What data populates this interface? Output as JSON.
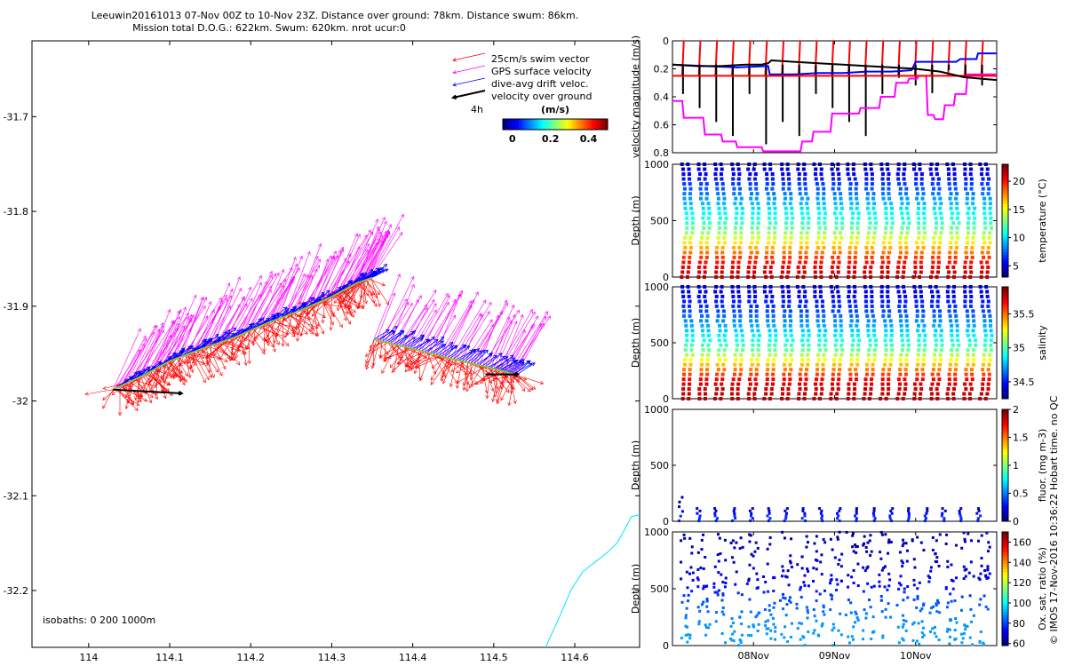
{
  "figure": {
    "title_line1": "Leeuwin20161013 07-Nov 00Z to 10-Nov 23Z. Distance over ground: 78km. Distance swum: 86km.",
    "title_line2": "Mission total D.O.G.: 622km. Swum: 620km. nrot ucur:0",
    "credit": "© IMOS 17-Nov-2016 10:36:22 Hobart time. no QC"
  },
  "chart_data": [
    {
      "id": "map",
      "type": "scatter",
      "title": "",
      "xlabel": "",
      "ylabel": "",
      "xlim": [
        113.93,
        114.68
      ],
      "ylim": [
        -32.26,
        -31.62
      ],
      "xticks": [
        "114",
        "114.1",
        "114.2",
        "114.3",
        "114.4",
        "114.5",
        "114.6"
      ],
      "xtick_values": [
        114.0,
        114.1,
        114.2,
        114.3,
        114.4,
        114.5,
        114.6
      ],
      "yticks": [
        "-31.7",
        "-31.8",
        "-31.9",
        "-32",
        "-32.1",
        "-32.2"
      ],
      "ytick_values": [
        -31.7,
        -31.8,
        -31.9,
        -32.0,
        -32.1,
        -32.2
      ],
      "legend": {
        "position": "top-right",
        "entries": [
          {
            "label": "25cm/s swim vector",
            "color": "#ff0000"
          },
          {
            "label": "GPS surface velocity",
            "color": "#ff00ff"
          },
          {
            "label": "dive-avg drift veloc.",
            "color": "#0000ff"
          },
          {
            "label": "velocity over ground",
            "color": "#000000"
          }
        ],
        "scale_label": "4h",
        "colorbar_title": "(m/s)",
        "colorbar_ticks": [
          "0",
          "0.2",
          "0.4"
        ],
        "colorbar_values": [
          0,
          0.2,
          0.4
        ],
        "colorbar_range": [
          -0.05,
          0.5
        ]
      },
      "isobaths_label": "isobaths: 0   200  1000m",
      "track": [
        {
          "x": 114.03,
          "y": -31.988
        },
        {
          "x": 114.07,
          "y": -31.972
        },
        {
          "x": 114.1,
          "y": -31.958
        },
        {
          "x": 114.14,
          "y": -31.945
        },
        {
          "x": 114.18,
          "y": -31.933
        },
        {
          "x": 114.22,
          "y": -31.918
        },
        {
          "x": 114.26,
          "y": -31.905
        },
        {
          "x": 114.3,
          "y": -31.89
        },
        {
          "x": 114.33,
          "y": -31.876
        },
        {
          "x": 114.35,
          "y": -31.87
        },
        {
          "x": 114.352,
          "y": -31.935
        },
        {
          "x": 114.4,
          "y": -31.945
        },
        {
          "x": 114.45,
          "y": -31.956
        },
        {
          "x": 114.5,
          "y": -31.966
        },
        {
          "x": 114.53,
          "y": -31.973
        }
      ],
      "ground_velocity_arrows": [
        {
          "x": 114.03,
          "y": -31.988,
          "dx": 0.085,
          "dy": -0.004
        },
        {
          "x": 114.49,
          "y": -31.972,
          "dx": 0.04,
          "dy": 0.0
        }
      ],
      "isobath_1000m": [
        {
          "x": 114.564,
          "y": -32.26
        },
        {
          "x": 114.58,
          "y": -32.23
        },
        {
          "x": 114.595,
          "y": -32.2
        },
        {
          "x": 114.61,
          "y": -32.18
        },
        {
          "x": 114.625,
          "y": -32.17
        },
        {
          "x": 114.64,
          "y": -32.16
        },
        {
          "x": 114.652,
          "y": -32.15
        },
        {
          "x": 114.662,
          "y": -32.135
        },
        {
          "x": 114.67,
          "y": -32.122
        },
        {
          "x": 114.68,
          "y": -32.12
        }
      ]
    },
    {
      "id": "velocity",
      "type": "line",
      "ylabel": "velocity magnitude (m/s)",
      "xlim": [
        0,
        4
      ],
      "ylim": [
        0,
        0.8
      ],
      "yticks": [
        "0",
        "0.2",
        "0.4",
        "0.6",
        "0.8"
      ],
      "ytick_values": [
        0,
        0.2,
        0.4,
        0.6,
        0.8
      ],
      "series": [
        {
          "color": "#ff00ff",
          "x": [
            0,
            0.12,
            0.14,
            0.38,
            0.4,
            0.6,
            0.62,
            0.78,
            0.8,
            1.1,
            1.12,
            1.58,
            1.6,
            1.72,
            1.74,
            1.95,
            1.97,
            2.3,
            2.32,
            2.55,
            2.57,
            2.74,
            2.76,
            2.9,
            2.92,
            3.02,
            3.04,
            3.13,
            3.15,
            3.22,
            3.24,
            3.34,
            3.36,
            3.47,
            3.49,
            3.62,
            3.64,
            4.0
          ],
          "values": [
            0.43,
            0.43,
            0.55,
            0.55,
            0.67,
            0.67,
            0.72,
            0.72,
            0.76,
            0.76,
            0.79,
            0.79,
            0.72,
            0.72,
            0.65,
            0.65,
            0.52,
            0.52,
            0.48,
            0.48,
            0.4,
            0.4,
            0.3,
            0.3,
            0.27,
            0.27,
            0.25,
            0.25,
            0.53,
            0.53,
            0.56,
            0.56,
            0.46,
            0.46,
            0.38,
            0.38,
            0.24,
            0.24
          ]
        },
        {
          "color": "#0000ff",
          "x": [
            0,
            0.4,
            0.8,
            1.18,
            1.2,
            1.5,
            1.8,
            2.1,
            2.4,
            2.7,
            2.95,
            3.0,
            3.2,
            3.5,
            3.55,
            3.75,
            3.77,
            4.0
          ],
          "values": [
            0.17,
            0.18,
            0.19,
            0.18,
            0.24,
            0.24,
            0.23,
            0.23,
            0.22,
            0.22,
            0.21,
            0.15,
            0.15,
            0.15,
            0.13,
            0.13,
            0.09,
            0.09
          ]
        },
        {
          "color": "#ff0000",
          "x": [
            0,
            4.0
          ],
          "values": [
            0.25,
            0.25
          ]
        },
        {
          "color": "#000000",
          "x": [
            0,
            0.3,
            0.6,
            0.9,
            1.1,
            1.18,
            1.22,
            1.5,
            1.8,
            2.1,
            2.4,
            2.7,
            3.0,
            3.3,
            3.6,
            4.0
          ],
          "values": [
            0.17,
            0.18,
            0.18,
            0.17,
            0.17,
            0.16,
            0.14,
            0.15,
            0.16,
            0.17,
            0.18,
            0.19,
            0.2,
            0.22,
            0.26,
            0.28
          ]
        }
      ]
    },
    {
      "id": "temperature",
      "type": "scatter",
      "ylabel": "Depth (m)",
      "colorbar_label": "temperature (°C)",
      "xlim": [
        0,
        4
      ],
      "ylim": [
        1000,
        0
      ],
      "yticks": [
        "0",
        "500",
        "1000"
      ],
      "ytick_values": [
        0,
        500,
        1000
      ],
      "colorbar_ticks": [
        "5",
        "10",
        "15",
        "20"
      ],
      "colorbar_values": [
        5,
        10,
        15,
        20
      ],
      "colorbar_range": [
        3,
        23
      ],
      "profile": [
        [
          0,
          22
        ],
        [
          150,
          20
        ],
        [
          300,
          16
        ],
        [
          450,
          12
        ],
        [
          600,
          10
        ],
        [
          800,
          7
        ],
        [
          1000,
          4
        ]
      ],
      "dive_count": 19
    },
    {
      "id": "salinity",
      "type": "scatter",
      "ylabel": "Depth (m)",
      "colorbar_label": "salinity",
      "xlim": [
        0,
        4
      ],
      "ylim": [
        1000,
        0
      ],
      "yticks": [
        "0",
        "500",
        "1000"
      ],
      "ytick_values": [
        0,
        500,
        1000
      ],
      "colorbar_ticks": [
        "34.5",
        "35",
        "35.5"
      ],
      "colorbar_values": [
        34.5,
        35,
        35.5
      ],
      "colorbar_range": [
        34.25,
        35.9
      ],
      "profile": [
        [
          0,
          35.8
        ],
        [
          150,
          35.75
        ],
        [
          300,
          35.4
        ],
        [
          450,
          35.0
        ],
        [
          600,
          34.8
        ],
        [
          800,
          34.55
        ],
        [
          1000,
          34.4
        ]
      ],
      "dive_count": 19
    },
    {
      "id": "fluorescence",
      "type": "scatter",
      "ylabel": "Depth (m)",
      "colorbar_label": "fluor. (mg m-3)",
      "xlim": [
        0,
        4
      ],
      "ylim": [
        1000,
        0
      ],
      "yticks": [
        "0",
        "500",
        "1000"
      ],
      "ytick_values": [
        0,
        500,
        1000
      ],
      "colorbar_ticks": [
        "0",
        "0.5",
        "1",
        "1.5",
        "2"
      ],
      "colorbar_values": [
        0,
        0.5,
        1,
        1.5,
        2
      ],
      "colorbar_range": [
        0,
        2
      ],
      "profile": [
        [
          0,
          0.3
        ],
        [
          40,
          0.35
        ],
        [
          80,
          0.2
        ],
        [
          150,
          0.05
        ]
      ],
      "max_depth": 210
    },
    {
      "id": "oxygen",
      "type": "scatter",
      "ylabel": "Depth (m)",
      "colorbar_label": "Ox. sat. ratio (%)",
      "xlim": [
        0,
        4
      ],
      "ylim": [
        1000,
        0
      ],
      "yticks": [
        "0",
        "500",
        "1000"
      ],
      "ytick_values": [
        0,
        500,
        1000
      ],
      "xticks": [
        "08Nov",
        "09Nov",
        "10Nov"
      ],
      "xtick_values": [
        1,
        2,
        3
      ],
      "colorbar_ticks": [
        "60",
        "80",
        "100",
        "120",
        "140",
        "160"
      ],
      "colorbar_values": [
        60,
        80,
        100,
        120,
        140,
        160
      ],
      "colorbar_range": [
        58,
        170
      ],
      "profile": [
        [
          0,
          90
        ],
        [
          200,
          88
        ],
        [
          400,
          80
        ],
        [
          600,
          68
        ],
        [
          1000,
          62
        ]
      ]
    }
  ]
}
